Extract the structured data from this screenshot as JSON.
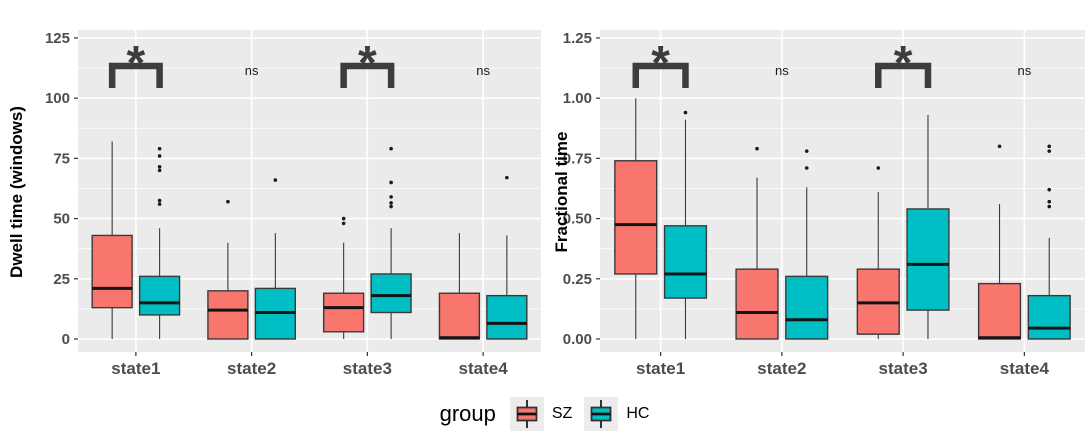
{
  "figure": {
    "background": "#FFFFFF"
  },
  "colors": {
    "sz": "#F8766D",
    "hc": "#00BFC4",
    "panel_bg": "#EBEBEB",
    "grid": "#FFFFFF",
    "box_stroke": "#3A3A3A",
    "median": "#141414",
    "outlier": "#1A1A1A",
    "annotation": "#3D3D3D",
    "tick_label": "#4D4D4D",
    "axis_title": "#000000"
  },
  "legend": {
    "title": "group",
    "items": [
      {
        "label": "SZ",
        "color": "#F8766D",
        "icon": "boxplot-key-icon"
      },
      {
        "label": "HC",
        "color": "#00BFC4",
        "icon": "boxplot-key-icon"
      }
    ]
  },
  "chart_data": [
    {
      "type": "boxplot",
      "title": "",
      "xlabel": "",
      "ylabel": "Dwell time (windows)",
      "categories": [
        "state1",
        "state2",
        "state3",
        "state4"
      ],
      "ylim": [
        -5.4,
        128.3
      ],
      "grid": true,
      "legend_position": "bottom",
      "yticks": {
        "values": [
          0,
          25,
          50,
          75,
          100,
          125
        ],
        "labels": [
          "0",
          "25",
          "50",
          "75",
          "100",
          "125"
        ],
        "minor": [
          12.5,
          37.5,
          62.5,
          87.5,
          112.5
        ]
      },
      "series": [
        {
          "name": "SZ",
          "color": "#F8766D",
          "boxes": [
            {
              "whisker_low": 0,
              "q1": 13,
              "median": 21,
              "q3": 43,
              "whisker_high": 82,
              "outliers": []
            },
            {
              "whisker_low": 0,
              "q1": 0,
              "median": 12,
              "q3": 20,
              "whisker_high": 40,
              "outliers": [
                57
              ]
            },
            {
              "whisker_low": 0,
              "q1": 3,
              "median": 13,
              "q3": 19,
              "whisker_high": 40,
              "outliers": [
                48,
                50
              ]
            },
            {
              "whisker_low": 0,
              "q1": 0,
              "median": 0.5,
              "q3": 19,
              "whisker_high": 44,
              "outliers": []
            }
          ]
        },
        {
          "name": "HC",
          "color": "#00BFC4",
          "boxes": [
            {
              "whisker_low": 0,
              "q1": 10,
              "median": 15,
              "q3": 26,
              "whisker_high": 46,
              "outliers": [
                56,
                57.5,
                70,
                71.5,
                76,
                79
              ]
            },
            {
              "whisker_low": 0,
              "q1": 0,
              "median": 11,
              "q3": 21,
              "whisker_high": 44,
              "outliers": [
                66
              ]
            },
            {
              "whisker_low": 0,
              "q1": 11,
              "median": 18,
              "q3": 27,
              "whisker_high": 46,
              "outliers": [
                55,
                56.5,
                59,
                65,
                79
              ]
            },
            {
              "whisker_low": 0,
              "q1": 0,
              "median": 6.5,
              "q3": 18,
              "whisker_high": 43,
              "outliers": [
                67
              ]
            }
          ]
        }
      ],
      "significance": [
        {
          "category": "state1",
          "label": "*"
        },
        {
          "category": "state2",
          "label": "ns"
        },
        {
          "category": "state3",
          "label": "*"
        },
        {
          "category": "state4",
          "label": "ns"
        }
      ]
    },
    {
      "type": "boxplot",
      "title": "",
      "xlabel": "",
      "ylabel": "Fractional time",
      "categories": [
        "state1",
        "state2",
        "state3",
        "state4"
      ],
      "ylim": [
        -0.054,
        1.283
      ],
      "grid": true,
      "legend_position": "bottom",
      "yticks": {
        "values": [
          0,
          0.25,
          0.5,
          0.75,
          1.0,
          1.25
        ],
        "labels": [
          "0.00",
          "0.25",
          "0.50",
          "0.75",
          "1.00",
          "1.25"
        ],
        "minor": [
          0.125,
          0.375,
          0.625,
          0.875,
          1.125
        ]
      },
      "series": [
        {
          "name": "SZ",
          "color": "#F8766D",
          "boxes": [
            {
              "whisker_low": 0,
              "q1": 0.27,
              "median": 0.475,
              "q3": 0.74,
              "whisker_high": 1.0,
              "outliers": []
            },
            {
              "whisker_low": 0,
              "q1": 0,
              "median": 0.11,
              "q3": 0.29,
              "whisker_high": 0.67,
              "outliers": [
                0.79
              ]
            },
            {
              "whisker_low": 0,
              "q1": 0.02,
              "median": 0.15,
              "q3": 0.29,
              "whisker_high": 0.61,
              "outliers": [
                0.71
              ]
            },
            {
              "whisker_low": 0,
              "q1": 0,
              "median": 0.005,
              "q3": 0.23,
              "whisker_high": 0.56,
              "outliers": [
                0.8
              ]
            }
          ]
        },
        {
          "name": "HC",
          "color": "#00BFC4",
          "boxes": [
            {
              "whisker_low": 0,
              "q1": 0.17,
              "median": 0.27,
              "q3": 0.47,
              "whisker_high": 0.91,
              "outliers": [
                0.94
              ]
            },
            {
              "whisker_low": 0,
              "q1": 0,
              "median": 0.08,
              "q3": 0.26,
              "whisker_high": 0.63,
              "outliers": [
                0.71,
                0.78
              ]
            },
            {
              "whisker_low": 0,
              "q1": 0.12,
              "median": 0.31,
              "q3": 0.54,
              "whisker_high": 0.93,
              "outliers": []
            },
            {
              "whisker_low": 0,
              "q1": 0,
              "median": 0.045,
              "q3": 0.18,
              "whisker_high": 0.42,
              "outliers": [
                0.55,
                0.57,
                0.62,
                0.78,
                0.8
              ]
            }
          ]
        }
      ],
      "significance": [
        {
          "category": "state1",
          "label": "*"
        },
        {
          "category": "state2",
          "label": "ns"
        },
        {
          "category": "state3",
          "label": "*"
        },
        {
          "category": "state4",
          "label": "ns"
        }
      ]
    }
  ]
}
